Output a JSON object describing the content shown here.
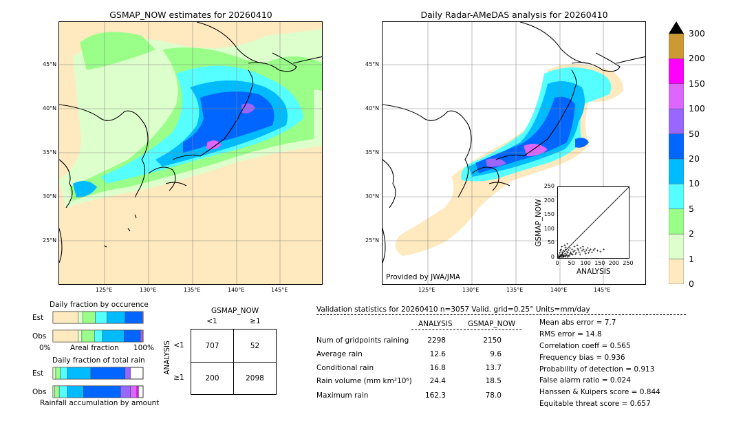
{
  "left_map": {
    "title": "GSMAP_NOW estimates for 20260410",
    "lat_ticks": [
      "45°N",
      "40°N",
      "35°N",
      "30°N",
      "25°N"
    ],
    "lon_ticks": [
      "125°E",
      "130°E",
      "135°E",
      "140°E",
      "145°E"
    ]
  },
  "right_map": {
    "title": "Daily Radar-AMeDAS analysis for 20260410",
    "lat_ticks": [
      "45°N",
      "40°N",
      "35°N",
      "30°N",
      "25°N"
    ],
    "lon_ticks": [
      "125°E",
      "130°E",
      "135°E",
      "140°E",
      "145°E"
    ],
    "credit": "Provided by JWA/JMA"
  },
  "colorbar": {
    "labels": [
      "300",
      "200",
      "150",
      "100",
      "50",
      "20",
      "10",
      "5",
      "2",
      "1",
      "0"
    ],
    "colors": [
      "#cc9933",
      "#ff00ff",
      "#dd66ff",
      "#9966ff",
      "#0066ff",
      "#00bbff",
      "#55ffff",
      "#99ff88",
      "#ddffcc",
      "#ffe9be"
    ]
  },
  "chart_data": [
    {
      "type": "scatter",
      "title": "",
      "xlabel": "ANALYSIS",
      "ylabel": "GSMAP_NOW",
      "xlim": [
        0,
        250
      ],
      "ylim": [
        0,
        250
      ],
      "ticks": [
        "0",
        "50",
        "100",
        "150",
        "200",
        "250"
      ],
      "points": [
        [
          5,
          3
        ],
        [
          8,
          6
        ],
        [
          10,
          12
        ],
        [
          12,
          4
        ],
        [
          15,
          20
        ],
        [
          18,
          10
        ],
        [
          20,
          25
        ],
        [
          22,
          8
        ],
        [
          25,
          15
        ],
        [
          28,
          30
        ],
        [
          30,
          12
        ],
        [
          32,
          22
        ],
        [
          35,
          18
        ],
        [
          38,
          28
        ],
        [
          40,
          10
        ],
        [
          42,
          35
        ],
        [
          45,
          20
        ],
        [
          48,
          14
        ],
        [
          50,
          30
        ],
        [
          55,
          22
        ],
        [
          58,
          40
        ],
        [
          60,
          25
        ],
        [
          65,
          18
        ],
        [
          70,
          32
        ],
        [
          72,
          28
        ],
        [
          75,
          20
        ],
        [
          80,
          35
        ],
        [
          85,
          25
        ],
        [
          90,
          30
        ],
        [
          95,
          22
        ],
        [
          100,
          28
        ],
        [
          105,
          35
        ],
        [
          110,
          25
        ],
        [
          115,
          30
        ],
        [
          120,
          20
        ],
        [
          125,
          28
        ],
        [
          130,
          32
        ],
        [
          140,
          26
        ],
        [
          150,
          22
        ],
        [
          162,
          30
        ],
        [
          3,
          10
        ],
        [
          6,
          18
        ],
        [
          9,
          25
        ],
        [
          11,
          30
        ],
        [
          14,
          40
        ],
        [
          16,
          12
        ],
        [
          19,
          5
        ],
        [
          24,
          45
        ],
        [
          27,
          38
        ],
        [
          33,
          50
        ],
        [
          36,
          8
        ],
        [
          44,
          16
        ],
        [
          52,
          12
        ],
        [
          62,
          14
        ],
        [
          68,
          45
        ],
        [
          78,
          12
        ],
        [
          88,
          40
        ],
        [
          98,
          15
        ],
        [
          108,
          18
        ],
        [
          2,
          2
        ],
        [
          4,
          6
        ],
        [
          7,
          4
        ],
        [
          13,
          8
        ],
        [
          17,
          3
        ],
        [
          21,
          6
        ],
        [
          26,
          5
        ],
        [
          29,
          9
        ],
        [
          34,
          4
        ],
        [
          39,
          7
        ]
      ]
    },
    {
      "type": "bar",
      "title": "Daily fraction by occurence",
      "categories": [
        "Est",
        "Obs"
      ],
      "xlabel": "Areal fraction",
      "x_ticks": [
        "0%",
        "100%"
      ],
      "series": [
        {
          "color": "#ffe9be",
          "values": [
            0.28,
            0.28
          ]
        },
        {
          "color": "#ddffcc",
          "values": [
            0.05,
            0.04
          ]
        },
        {
          "color": "#99ff88",
          "values": [
            0.14,
            0.14
          ]
        },
        {
          "color": "#55ffff",
          "values": [
            0.13,
            0.09
          ]
        },
        {
          "color": "#00bbff",
          "values": [
            0.2,
            0.24
          ]
        },
        {
          "color": "#0066ff",
          "values": [
            0.19,
            0.18
          ]
        },
        {
          "color": "#9966ff",
          "values": [
            0.01,
            0.02
          ]
        },
        {
          "color": "#dd66ff",
          "values": [
            0.0,
            0.01
          ]
        }
      ]
    },
    {
      "type": "bar",
      "title": "Daily fraction of total rain",
      "categories": [
        "Est",
        "Obs"
      ],
      "xlabel": "Rainfall accumulation by amount",
      "series": [
        {
          "color": "#ddffcc",
          "values": [
            0.03,
            0.02
          ]
        },
        {
          "color": "#99ff88",
          "values": [
            0.05,
            0.05
          ]
        },
        {
          "color": "#55ffff",
          "values": [
            0.08,
            0.09
          ]
        },
        {
          "color": "#00bbff",
          "values": [
            0.26,
            0.18
          ]
        },
        {
          "color": "#0066ff",
          "values": [
            0.38,
            0.41
          ]
        },
        {
          "color": "#9966ff",
          "values": [
            0.06,
            0.11
          ]
        },
        {
          "color": "#dd66ff",
          "values": [
            0.0,
            0.07
          ]
        },
        {
          "color": "#ff00ff",
          "values": [
            0.0,
            0.02
          ]
        }
      ]
    },
    {
      "type": "table",
      "title": "GSMAP_NOW",
      "col_header": [
        "<1",
        "≥1"
      ],
      "row_axis": "ANALYSIS",
      "row_header": [
        "<1",
        "≥1"
      ],
      "cells": [
        [
          "707",
          "52"
        ],
        [
          "200",
          "2098"
        ]
      ]
    }
  ],
  "stats": {
    "header": "Validation statistics for 20260410  n=3057 Valid. grid=0.25° Units=mm/day",
    "col_analysis": "ANALYSIS",
    "col_gsmap": "GSMAP_NOW",
    "rows": [
      {
        "label": "Num of gridpoints raining",
        "analysis": "2298",
        "gsmap": "2150"
      },
      {
        "label": "Average rain",
        "analysis": "12.6",
        "gsmap": "9.6"
      },
      {
        "label": "Conditional rain",
        "analysis": "16.8",
        "gsmap": "13.7"
      },
      {
        "label": "Rain volume (mm km²10⁶)",
        "analysis": "24.4",
        "gsmap": "18.5"
      },
      {
        "label": "Maximum rain",
        "analysis": "162.3",
        "gsmap": "78.0"
      }
    ],
    "scores": [
      "Mean abs error =    7.7",
      "RMS error =   14.8",
      "Correlation coeff =  0.565",
      "Frequency bias =  0.936",
      "Probability of detection =  0.913",
      "False alarm ratio =  0.024",
      "Hanssen & Kuipers score =  0.844",
      "Equitable threat score =  0.657"
    ]
  }
}
